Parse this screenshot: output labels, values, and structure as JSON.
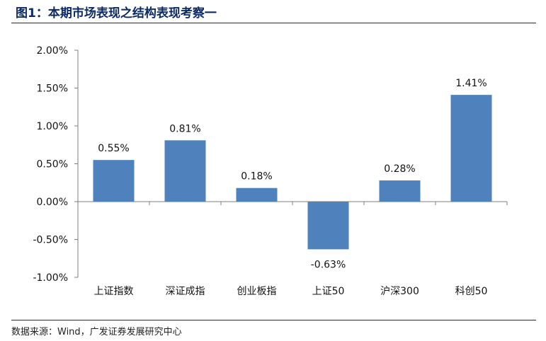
{
  "figure": {
    "title": "图1：本期市场表现之结构表现考察一",
    "source": "数据来源：Wind，广发证券发展研究中心"
  },
  "colors": {
    "bar": "#4f81bd",
    "title": "#0b2a66",
    "axis": "#7f7f7f"
  },
  "chart_data": {
    "type": "bar",
    "title": "",
    "xlabel": "",
    "ylabel": "",
    "categories": [
      "上证指数",
      "深证成指",
      "创业板指",
      "上证50",
      "沪深300",
      "科创50"
    ],
    "values": [
      0.55,
      0.81,
      0.18,
      -0.63,
      0.28,
      1.41
    ],
    "data_labels": [
      "0.55%",
      "0.81%",
      "0.18%",
      "-0.63%",
      "0.28%",
      "1.41%"
    ],
    "y_ticks": [
      2.0,
      1.5,
      1.0,
      0.5,
      0.0,
      -0.5,
      -1.0
    ],
    "y_tick_labels": [
      "2.00%",
      "1.50%",
      "1.00%",
      "0.50%",
      "0.00%",
      "-0.50%",
      "-1.00%"
    ],
    "ylim": [
      -1.0,
      2.0
    ],
    "unit": "%",
    "grid": false,
    "legend": "none"
  }
}
